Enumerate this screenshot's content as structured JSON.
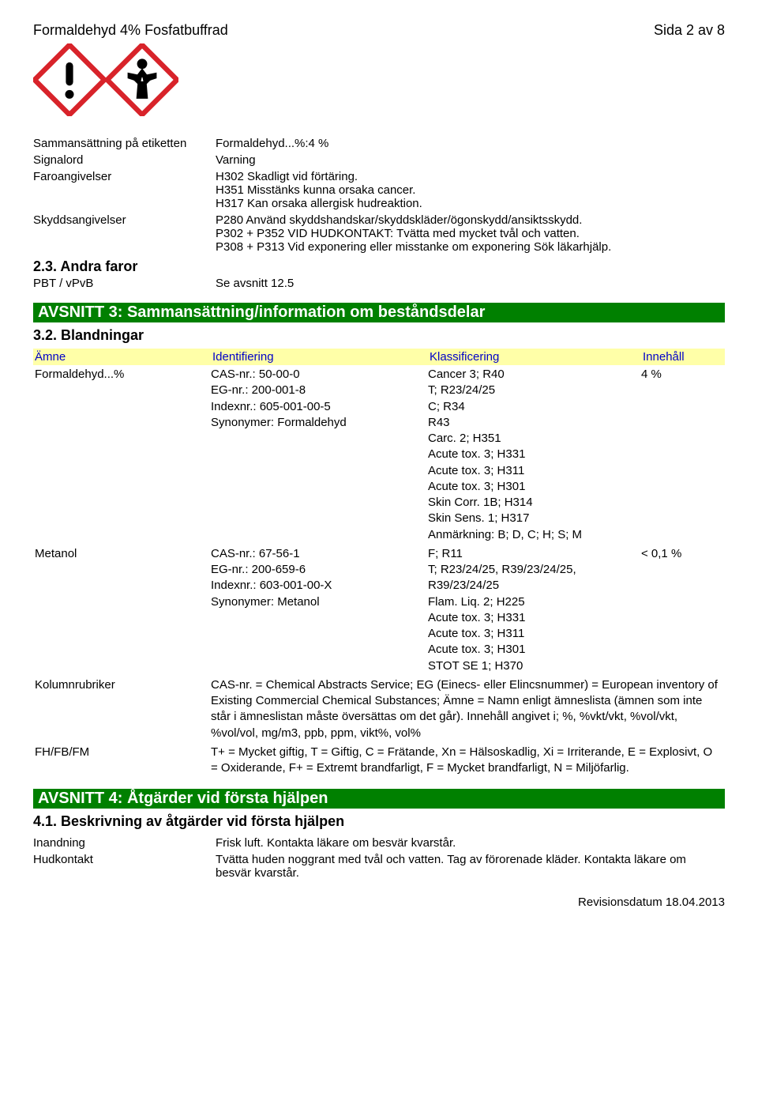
{
  "header": {
    "title": "Formaldehyd 4% Fosfatbuffrad",
    "page": "Sida 2 av 8"
  },
  "kv_rows": [
    {
      "label": "Sammansättning på etiketten",
      "value": "Formaldehyd...%:4 %"
    },
    {
      "label": "Signalord",
      "value": "Varning"
    },
    {
      "label": "Faroangivelser",
      "value": "H302 Skadligt vid förtäring.\nH351 Misstänks kunna orsaka cancer.\nH317 Kan orsaka allergisk hudreaktion."
    },
    {
      "label": "Skyddsangivelser",
      "value": "P280 Använd skyddshandskar/skyddskläder/ögonskydd/ansiktsskydd.\nP302 + P352 VID HUDKONTAKT: Tvätta med mycket tvål och vatten.\nP308 + P313 Vid exponering eller misstanke om exponering Sök läkarhjälp."
    }
  ],
  "sub23": "2.3. Andra faror",
  "pbt": {
    "label": "PBT / vPvB",
    "value": "Se avsnitt 12.5"
  },
  "section3": {
    "bar": "AVSNITT 3: Sammansättning/information om beståndsdelar",
    "sub": "3.2. Blandningar",
    "headers": {
      "a": "Ämne",
      "b": "Identifiering",
      "c": "Klassificering",
      "d": "Innehåll"
    },
    "rows": [
      {
        "name": "Formaldehyd...%",
        "ident": "CAS-nr.: 50-00-0\nEG-nr.: 200-001-8\nIndexnr.: 605-001-00-5\nSynonymer: Formaldehyd",
        "klass": "Cancer 3; R40\nT; R23/24/25\nC; R34\nR43\nCarc. 2; H351\nAcute tox. 3; H331\nAcute tox. 3; H311\nAcute tox. 3; H301\nSkin Corr. 1B; H314\nSkin Sens. 1; H317\nAnmärkning: B; D, C; H; S; M",
        "amount": "4 %"
      },
      {
        "name": "Metanol",
        "ident": "CAS-nr.: 67-56-1\nEG-nr.: 200-659-6\nIndexnr.: 603-001-00-X\nSynonymer: Metanol",
        "klass": "F; R11\nT; R23/24/25, R39/23/24/25, R39/23/24/25\nFlam. Liq. 2; H225\nAcute tox. 3; H331\nAcute tox. 3; H311\nAcute tox. 3; H301\nSTOT SE 1; H370",
        "amount": "< 0,1 %"
      }
    ],
    "footnotes": [
      {
        "label": "Kolumnrubriker",
        "text": "CAS-nr. = Chemical Abstracts Service; EG (Einecs- eller Elincsnummer) = European inventory of Existing Commercial Chemical Substances; Ämne = Namn enligt ämneslista (ämnen som inte står i ämneslistan måste översättas om det går). Innehåll angivet i; %, %vkt/vkt, %vol/vkt, %vol/vol, mg/m3, ppb,  ppm, vikt%, vol%"
      },
      {
        "label": "FH/FB/FM",
        "text": "T+ = Mycket giftig, T = Giftig, C = Frätande, Xn = Hälsoskadlig, Xi = Irriterande, E = Explosivt, O = Oxiderande, F+ = Extremt brandfarligt, F = Mycket brandfarligt, N = Miljöfarlig."
      }
    ]
  },
  "section4": {
    "bar": "AVSNITT 4: Åtgärder vid första hjälpen",
    "sub": "4.1. Beskrivning av åtgärder vid första hjälpen",
    "rows": [
      {
        "label": "Inandning",
        "value": "Frisk luft. Kontakta läkare om besvär kvarstår."
      },
      {
        "label": "Hudkontakt",
        "value": "Tvätta huden noggrant med tvål och vatten. Tag av förorenade kläder. Kontakta läkare om besvär kvarstår."
      }
    ]
  },
  "footer": "Revisionsdatum 18.04.2013"
}
